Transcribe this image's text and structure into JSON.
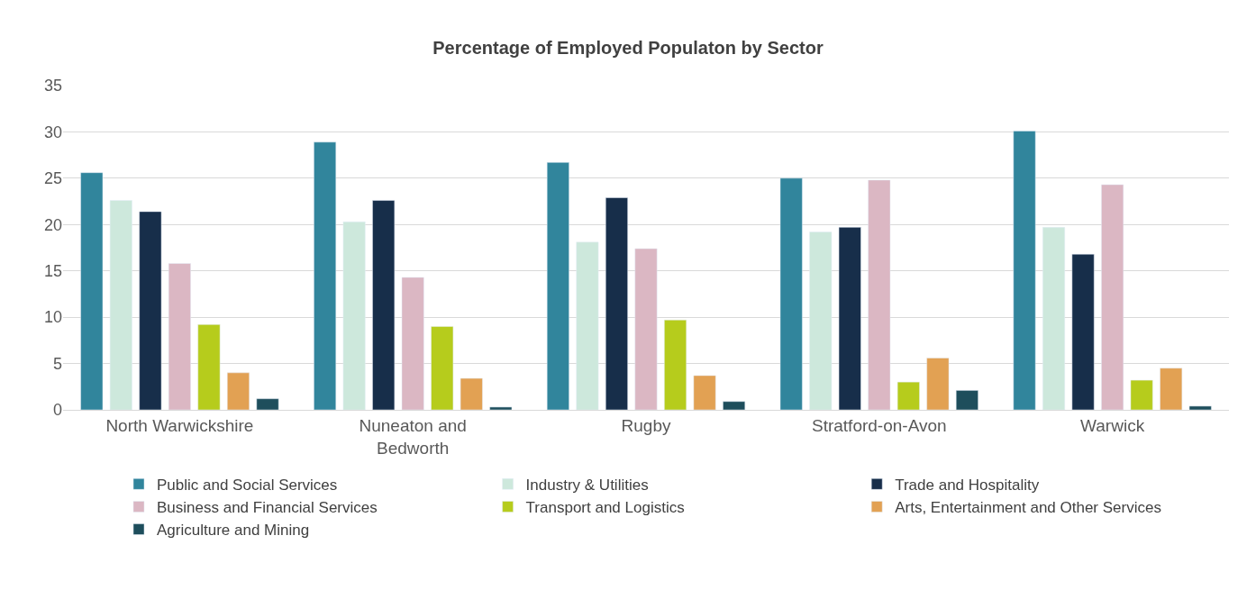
{
  "chart_data": {
    "type": "bar",
    "title": "Percentage of Employed Populaton by Sector",
    "categories": [
      "North Warwickshire",
      "Nuneaton and Bedworth",
      "Rugby",
      "Stratford-on-Avon",
      "Warwick"
    ],
    "series": [
      {
        "name": "Public and Social Services",
        "color": "#31859c",
        "values": [
          25.6,
          28.9,
          26.7,
          25.0,
          30.1
        ]
      },
      {
        "name": "Industry & Utilities",
        "color": "#cde8dc",
        "values": [
          22.6,
          20.3,
          18.1,
          19.2,
          19.7
        ]
      },
      {
        "name": "Trade and Hospitality",
        "color": "#172e4a",
        "values": [
          21.4,
          22.6,
          22.9,
          19.7,
          16.8
        ]
      },
      {
        "name": "Business and Financial Services",
        "color": "#dbb7c3",
        "values": [
          15.8,
          14.3,
          17.4,
          24.8,
          24.3
        ]
      },
      {
        "name": "Transport and Logistics",
        "color": "#b6cc1c",
        "values": [
          9.2,
          9.0,
          9.7,
          3.0,
          3.2
        ]
      },
      {
        "name": "Arts, Entertainment and Other Services",
        "color": "#e2a153",
        "values": [
          4.0,
          3.4,
          3.7,
          5.6,
          4.5
        ]
      },
      {
        "name": "Agriculture and Mining",
        "color": "#1e4e5c",
        "values": [
          1.2,
          0.3,
          0.9,
          2.1,
          0.4
        ]
      }
    ],
    "ylim": [
      0,
      35
    ],
    "yticks": [
      0,
      5,
      10,
      15,
      20,
      25,
      30,
      35
    ],
    "grid": "y",
    "legend": "bottom"
  }
}
